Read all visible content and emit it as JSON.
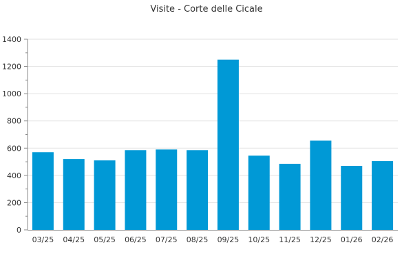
{
  "chart_data": {
    "type": "bar",
    "title": "Visite - Corte delle Cicale",
    "xlabel": "",
    "ylabel": "",
    "categories": [
      "03/25",
      "04/25",
      "05/25",
      "06/25",
      "07/25",
      "08/25",
      "09/25",
      "10/25",
      "11/25",
      "12/25",
      "01/26",
      "02/26"
    ],
    "values": [
      570,
      520,
      510,
      585,
      590,
      585,
      1250,
      545,
      485,
      655,
      470,
      505
    ],
    "ylim": [
      0,
      1400
    ],
    "yticks": [
      0,
      200,
      400,
      600,
      800,
      1000,
      1200,
      1400
    ],
    "grid": true,
    "legend": "none",
    "bar_color": "#0099d6"
  }
}
